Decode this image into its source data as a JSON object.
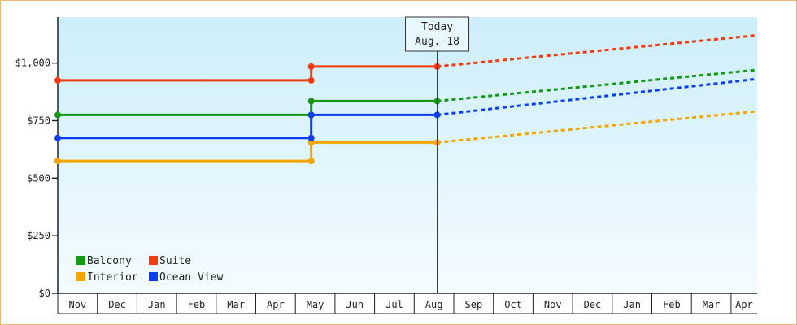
{
  "chart_data": {
    "type": "line",
    "title": "",
    "xlabel": "",
    "ylabel": "",
    "ylim": [
      0,
      1200
    ],
    "y_ticks": [
      {
        "value": 0,
        "label": "$0"
      },
      {
        "value": 250,
        "label": "$250"
      },
      {
        "value": 500,
        "label": "$500"
      },
      {
        "value": 750,
        "label": "$750"
      },
      {
        "value": 1000,
        "label": "$1,000"
      }
    ],
    "x_categories": [
      "Nov",
      "Dec",
      "Jan",
      "Feb",
      "Mar",
      "Apr",
      "May",
      "Jun",
      "Jul",
      "Aug",
      "Sep",
      "Oct",
      "Nov",
      "Dec",
      "Jan",
      "Feb",
      "Mar",
      "Apr"
    ],
    "background_gradient": [
      "#cdeefa",
      "#f4fcff"
    ],
    "grid": false,
    "legend_position": "bottom-left",
    "today": {
      "line1": "Today",
      "line2": "Aug. 18",
      "x_index": 9.58
    },
    "series": [
      {
        "name": "Balcony",
        "color": "#149914",
        "history": [
          [
            0,
            775
          ],
          [
            6.4,
            775
          ],
          [
            6.4,
            835
          ],
          [
            9.58,
            835
          ]
        ],
        "forecast": [
          [
            9.58,
            835
          ],
          [
            17.6,
            970
          ]
        ]
      },
      {
        "name": "Suite",
        "color": "#f23c0f",
        "history": [
          [
            0,
            925
          ],
          [
            6.4,
            925
          ],
          [
            6.4,
            985
          ],
          [
            9.58,
            985
          ]
        ],
        "forecast": [
          [
            9.58,
            985
          ],
          [
            17.6,
            1120
          ]
        ]
      },
      {
        "name": "Interior",
        "color": "#f5a500",
        "history": [
          [
            0,
            575
          ],
          [
            6.4,
            575
          ],
          [
            6.4,
            655
          ],
          [
            9.58,
            655
          ]
        ],
        "forecast": [
          [
            9.58,
            655
          ],
          [
            17.6,
            790
          ]
        ]
      },
      {
        "name": "Ocean View",
        "color": "#0a3ef0",
        "history": [
          [
            0,
            675
          ],
          [
            6.4,
            675
          ],
          [
            6.4,
            775
          ],
          [
            9.58,
            775
          ]
        ],
        "forecast": [
          [
            9.58,
            775
          ],
          [
            17.6,
            930
          ]
        ]
      }
    ],
    "legend_order": [
      "Balcony",
      "Suite",
      "Interior",
      "Ocean View"
    ]
  }
}
